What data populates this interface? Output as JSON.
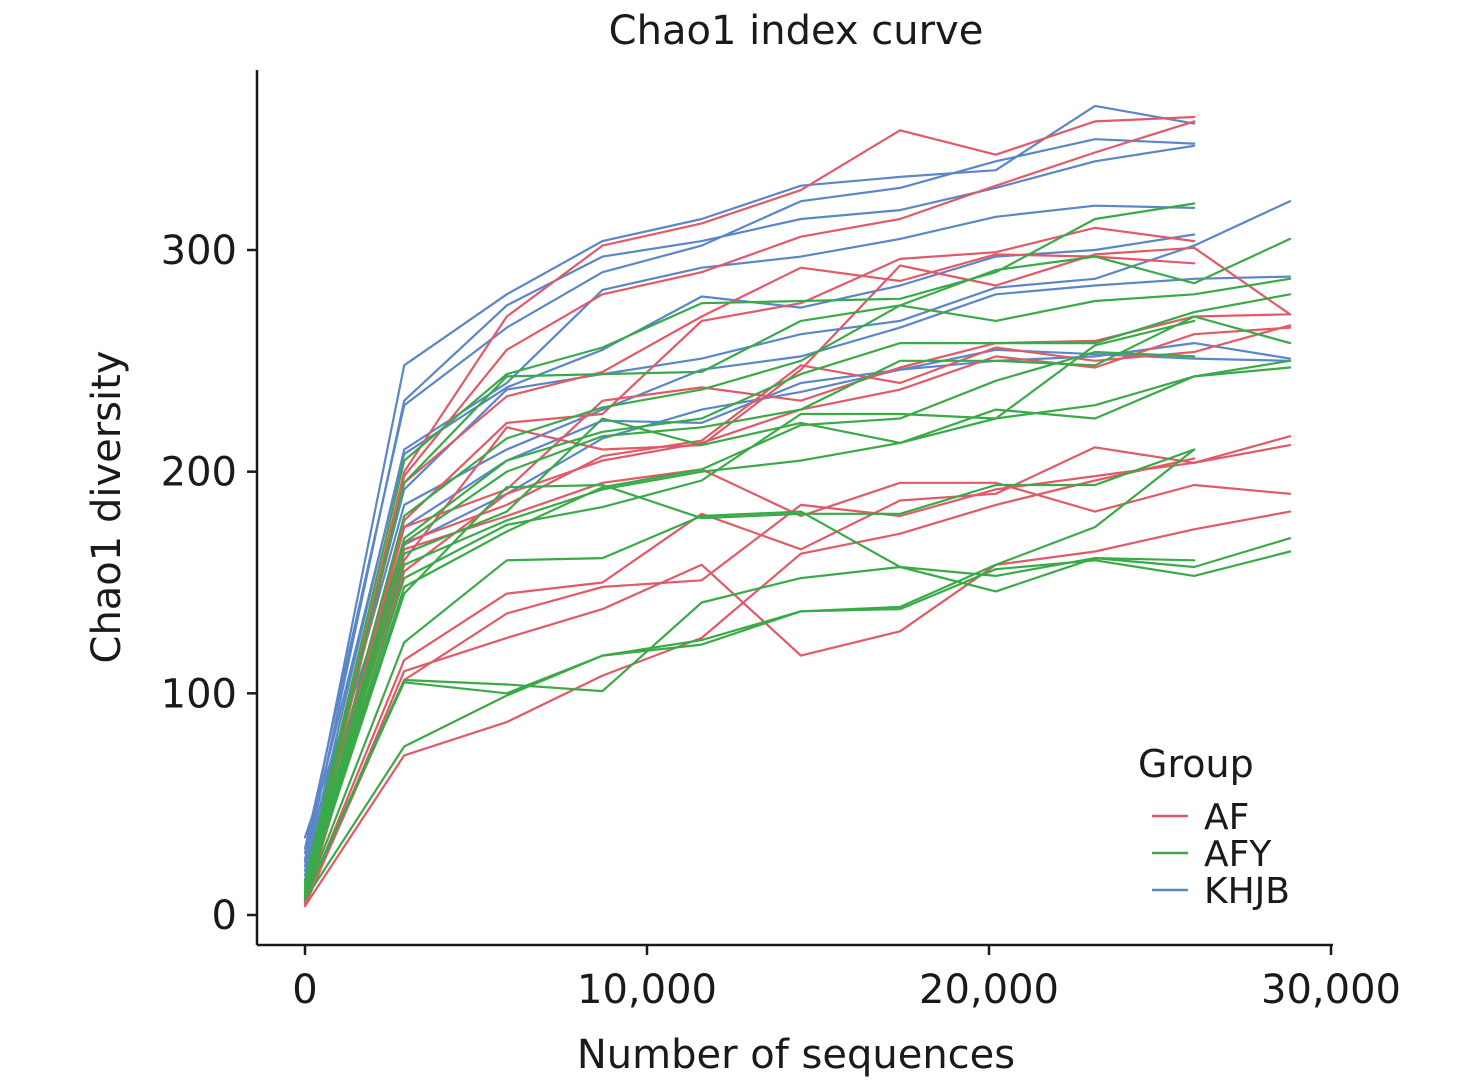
{
  "chart_data": {
    "type": "line",
    "title": "Chao1 index curve",
    "xlabel": "Number of sequences",
    "ylabel": "Chao1 diversity",
    "xlim": [
      -1400,
      30000
    ],
    "ylim": [
      -14,
      380
    ],
    "x_ticks": [
      0,
      10000,
      20000,
      30000
    ],
    "x_tick_labels": [
      "0",
      "10,000",
      "20,000",
      "30,000"
    ],
    "y_ticks": [
      0,
      100,
      200,
      300
    ],
    "y_tick_labels": [
      "0",
      "100",
      "200",
      "300"
    ],
    "grid": false,
    "legend": {
      "title": "Group",
      "position": "bottom-right",
      "entries": [
        {
          "name": "AF",
          "color": "#e05a68"
        },
        {
          "name": "AFY",
          "color": "#3aaa48"
        },
        {
          "name": "KHJB",
          "color": "#5b86c8"
        }
      ]
    },
    "colors": {
      "AF": "#e05a68",
      "AFY": "#3aaa48",
      "KHJB": "#5b86c8"
    },
    "series": [
      {
        "group": "KHJB",
        "x": [
          0,
          2900,
          5900,
          8700,
          11600,
          14500,
          17400,
          20200,
          23100,
          26000
        ],
        "y": [
          25,
          248,
          280,
          304,
          314,
          329,
          333,
          336,
          365,
          357
        ]
      },
      {
        "group": "KHJB",
        "x": [
          0,
          2900,
          5900,
          8700,
          11600,
          14500,
          17400,
          20200,
          23100,
          26000
        ],
        "y": [
          22,
          232,
          275,
          297,
          304,
          314,
          318,
          328,
          340,
          347
        ]
      },
      {
        "group": "KHJB",
        "x": [
          0,
          2900,
          5900,
          8700,
          11600,
          14500,
          17400,
          20200,
          23100,
          26000
        ],
        "y": [
          30,
          230,
          265,
          290,
          302,
          322,
          328,
          340,
          350,
          348
        ]
      },
      {
        "group": "KHJB",
        "x": [
          0,
          2900,
          5900,
          8700,
          11600,
          14500,
          17400,
          20200,
          23100,
          26000
        ],
        "y": [
          20,
          210,
          240,
          282,
          292,
          297,
          305,
          315,
          320,
          319
        ]
      },
      {
        "group": "KHJB",
        "x": [
          0,
          2900,
          5900,
          8700,
          11600,
          14500,
          17400,
          20200,
          23100,
          26000
        ],
        "y": [
          28,
          208,
          238,
          255,
          279,
          274,
          284,
          297,
          300,
          307
        ]
      },
      {
        "group": "KHJB",
        "x": [
          0,
          2900,
          5900,
          8700,
          11600,
          14500,
          17400,
          20200,
          23100,
          26000,
          28800
        ],
        "y": [
          18,
          192,
          237,
          244,
          251,
          262,
          268,
          283,
          287,
          302,
          322
        ]
      },
      {
        "group": "KHJB",
        "x": [
          0,
          2900,
          5900,
          8700,
          11600,
          14500,
          17400,
          20200,
          23100,
          26000,
          28800
        ],
        "y": [
          24,
          185,
          210,
          228,
          246,
          252,
          265,
          280,
          284,
          287,
          288
        ]
      },
      {
        "group": "KHJB",
        "x": [
          0,
          2900,
          5900,
          8700,
          11600,
          14500,
          17400,
          20200,
          23100,
          26000,
          28800
        ],
        "y": [
          16,
          175,
          205,
          223,
          222,
          240,
          246,
          255,
          253,
          251,
          250
        ]
      },
      {
        "group": "KHJB",
        "x": [
          0,
          2900,
          5900,
          8700,
          11600,
          14500,
          17400,
          20200,
          23100,
          26000,
          28800
        ],
        "y": [
          35,
          167,
          190,
          215,
          228,
          236,
          246,
          250,
          252,
          258,
          251
        ]
      },
      {
        "group": "AF",
        "x": [
          0,
          2900,
          5900,
          8700,
          11600,
          14500,
          17400,
          20200,
          23100,
          26000
        ],
        "y": [
          12,
          200,
          270,
          302,
          312,
          327,
          354,
          343,
          358,
          360
        ]
      },
      {
        "group": "AF",
        "x": [
          0,
          2900,
          5900,
          8700,
          11600,
          14500,
          17400,
          20200,
          23100,
          26000
        ],
        "y": [
          10,
          198,
          255,
          280,
          290,
          306,
          314,
          329,
          344,
          358
        ]
      },
      {
        "group": "AF",
        "x": [
          0,
          2900,
          5900,
          8700,
          11600,
          14500,
          17400,
          20200,
          23100,
          26000
        ],
        "y": [
          9,
          195,
          234,
          245,
          270,
          292,
          286,
          298,
          297,
          294
        ]
      },
      {
        "group": "AF",
        "x": [
          0,
          2900,
          5900,
          8700,
          11600,
          14500,
          17400,
          20200,
          23100,
          26000
        ],
        "y": [
          8,
          178,
          222,
          226,
          268,
          276,
          296,
          299,
          310,
          304
        ]
      },
      {
        "group": "AF",
        "x": [
          0,
          2900,
          5900,
          8700,
          11600,
          14500,
          17400,
          20200,
          23100,
          26000,
          28800
        ],
        "y": [
          7,
          160,
          220,
          210,
          212,
          246,
          293,
          284,
          298,
          301,
          271
        ]
      },
      {
        "group": "AF",
        "x": [
          0,
          2900,
          5900,
          8700,
          11600,
          14500,
          17400,
          20200,
          23100,
          26000,
          28800
        ],
        "y": [
          6,
          175,
          192,
          232,
          238,
          232,
          247,
          258,
          259,
          270,
          271
        ]
      },
      {
        "group": "AF",
        "x": [
          0,
          2900,
          5900,
          8700,
          11600,
          14500,
          17400,
          20200,
          23100,
          26000,
          28800
        ],
        "y": [
          8,
          168,
          185,
          207,
          214,
          248,
          240,
          256,
          250,
          254,
          266
        ]
      },
      {
        "group": "AF",
        "x": [
          0,
          2900,
          5900,
          8700,
          11600,
          14500,
          17400,
          20200,
          23100,
          26000,
          28800
        ],
        "y": [
          5,
          155,
          190,
          205,
          213,
          228,
          237,
          252,
          247,
          262,
          265
        ]
      },
      {
        "group": "AF",
        "x": [
          0,
          2900,
          5900,
          8700,
          11600,
          14500,
          17400,
          20200,
          23100,
          26000,
          28800
        ],
        "y": [
          7,
          165,
          180,
          195,
          201,
          180,
          195,
          195,
          182,
          194,
          190
        ]
      },
      {
        "group": "AF",
        "x": [
          0,
          2900,
          5900,
          8700,
          11600,
          14500,
          17400,
          20200,
          23100,
          26000,
          28800
        ],
        "y": [
          6,
          115,
          145,
          150,
          181,
          165,
          187,
          190,
          211,
          204,
          216
        ]
      },
      {
        "group": "AF",
        "x": [
          0,
          2900,
          5900,
          8700,
          11600,
          14500,
          17400,
          20200,
          23100,
          26000,
          28800
        ],
        "y": [
          5,
          106,
          136,
          148,
          151,
          185,
          180,
          192,
          198,
          204,
          212
        ]
      },
      {
        "group": "AF",
        "x": [
          0,
          2900,
          5900,
          8700,
          11600,
          14500,
          17400,
          20200,
          23100,
          26000,
          28800
        ],
        "y": [
          4,
          110,
          125,
          138,
          158,
          117,
          128,
          158,
          164,
          174,
          182
        ]
      },
      {
        "group": "AF",
        "x": [
          0,
          2900,
          5900,
          8700,
          11600,
          14500,
          17400,
          20200,
          23100,
          26000
        ],
        "y": [
          4,
          72,
          87,
          108,
          125,
          163,
          172,
          185,
          196,
          206
        ]
      },
      {
        "group": "AFY",
        "x": [
          0,
          2900,
          5900,
          8700,
          11600,
          14500,
          17400,
          20200,
          23100,
          26000
        ],
        "y": [
          15,
          205,
          244,
          256,
          276,
          277,
          278,
          290,
          314,
          321
        ]
      },
      {
        "group": "AFY",
        "x": [
          0,
          2900,
          5900,
          8700,
          11600,
          14500,
          17400,
          20200,
          23100,
          26000,
          28800
        ],
        "y": [
          14,
          195,
          243,
          244,
          245,
          268,
          275,
          291,
          297,
          285,
          305
        ]
      },
      {
        "group": "AFY",
        "x": [
          0,
          2900,
          5900,
          8700,
          11600,
          14500,
          17400,
          20200,
          23100,
          26000,
          28800
        ],
        "y": [
          13,
          180,
          215,
          229,
          237,
          250,
          275,
          268,
          277,
          280,
          287
        ]
      },
      {
        "group": "AFY",
        "x": [
          0,
          2900,
          5900,
          8700,
          11600,
          14500,
          17400,
          20200,
          23100,
          26000,
          28800
        ],
        "y": [
          12,
          170,
          205,
          218,
          224,
          244,
          258,
          258,
          258,
          272,
          280
        ]
      },
      {
        "group": "AFY",
        "x": [
          0,
          2900,
          5900,
          8700,
          11600,
          14500,
          17400,
          20200,
          23100,
          26000,
          28800
        ],
        "y": [
          12,
          168,
          200,
          216,
          220,
          228,
          250,
          250,
          248,
          270,
          258
        ]
      },
      {
        "group": "AFY",
        "x": [
          0,
          2900,
          5900,
          8700,
          11600,
          14500,
          17400,
          20200,
          23100,
          26000,
          28800
        ],
        "y": [
          11,
          163,
          182,
          224,
          212,
          222,
          213,
          224,
          230,
          243,
          247
        ]
      },
      {
        "group": "AFY",
        "x": [
          0,
          2900,
          5900,
          8700,
          11600,
          14500,
          17400,
          20200,
          23100,
          26000,
          28800
        ],
        "y": [
          10,
          158,
          178,
          192,
          200,
          205,
          213,
          228,
          224,
          243,
          250
        ]
      },
      {
        "group": "AFY",
        "x": [
          0,
          2900,
          5900,
          8700,
          11600,
          14500,
          17400,
          20200,
          23100,
          26000
        ],
        "y": [
          10,
          152,
          176,
          184,
          196,
          226,
          226,
          224,
          257,
          268
        ]
      },
      {
        "group": "AFY",
        "x": [
          0,
          2900,
          5900,
          8700,
          11600,
          14500,
          17400,
          20200,
          23100,
          26000
        ],
        "y": [
          9,
          148,
          173,
          193,
          201,
          221,
          224,
          241,
          254,
          252
        ]
      },
      {
        "group": "AFY",
        "x": [
          0,
          2900,
          5900,
          8700,
          11600,
          14500,
          17400,
          20200,
          23100,
          26000
        ],
        "y": [
          9,
          145,
          193,
          194,
          179,
          181,
          181,
          194,
          194,
          210
        ]
      },
      {
        "group": "AFY",
        "x": [
          0,
          2900,
          5900,
          8700,
          11600,
          14500,
          17400,
          20200,
          23100,
          26000,
          28800
        ],
        "y": [
          8,
          123,
          160,
          161,
          180,
          182,
          157,
          146,
          161,
          157,
          170
        ]
      },
      {
        "group": "AFY",
        "x": [
          0,
          2900,
          5900,
          8700,
          11600,
          14500,
          17400,
          20200,
          23100,
          26000,
          28800
        ],
        "y": [
          8,
          105,
          100,
          117,
          122,
          137,
          138,
          156,
          160,
          153,
          164
        ]
      },
      {
        "group": "AFY",
        "x": [
          0,
          2900,
          5900,
          8700,
          11600,
          14500,
          17400,
          20200,
          23100,
          26000
        ],
        "y": [
          8,
          106,
          104,
          101,
          141,
          152,
          157,
          153,
          161,
          160
        ]
      },
      {
        "group": "AFY",
        "x": [
          0,
          2900,
          5900,
          8700,
          11600,
          14500,
          17400,
          20200,
          23100,
          26000
        ],
        "y": [
          7,
          76,
          99,
          117,
          124,
          137,
          139,
          158,
          175,
          210
        ]
      }
    ]
  }
}
